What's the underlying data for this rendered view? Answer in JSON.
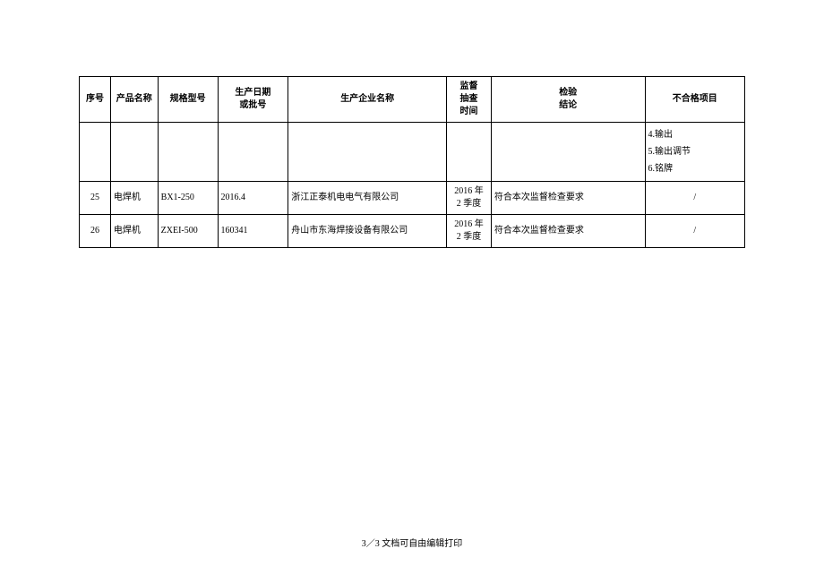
{
  "table": {
    "columns": [
      {
        "label": "序号",
        "width": "4.7%"
      },
      {
        "label": "产品名称",
        "width": "7.1%"
      },
      {
        "label": "规格型号",
        "width": "9.0%"
      },
      {
        "label": "生产日期\n或批号",
        "width": "10.6%"
      },
      {
        "label": "生产企业名称",
        "width": "23.8%"
      },
      {
        "label": "监督\n抽查\n时间",
        "width": "6.7%"
      },
      {
        "label": "检验\n结论",
        "width": "23.1%"
      },
      {
        "label": "不合格项目",
        "width": "15.0%"
      }
    ],
    "continuation_row": {
      "items": "4.输出\n5.输出调节\n6.铭牌"
    },
    "rows": [
      {
        "seq": "25",
        "name": "电焊机",
        "model": "BX1-250",
        "date": "2016.4",
        "company": "浙江正泰机电电气有限公司",
        "period": "2016 年\n2 季度",
        "conclusion": "符合本次监督检查要求",
        "fail": "/"
      },
      {
        "seq": "26",
        "name": "电焊机",
        "model": "ZXEI-500",
        "date": "160341",
        "company": "舟山市东海焊接设备有限公司",
        "period": "2016 年\n2 季度",
        "conclusion": "符合本次监督检查要求",
        "fail": "/"
      }
    ]
  },
  "footer": "3／3 文档可自由编辑打印"
}
